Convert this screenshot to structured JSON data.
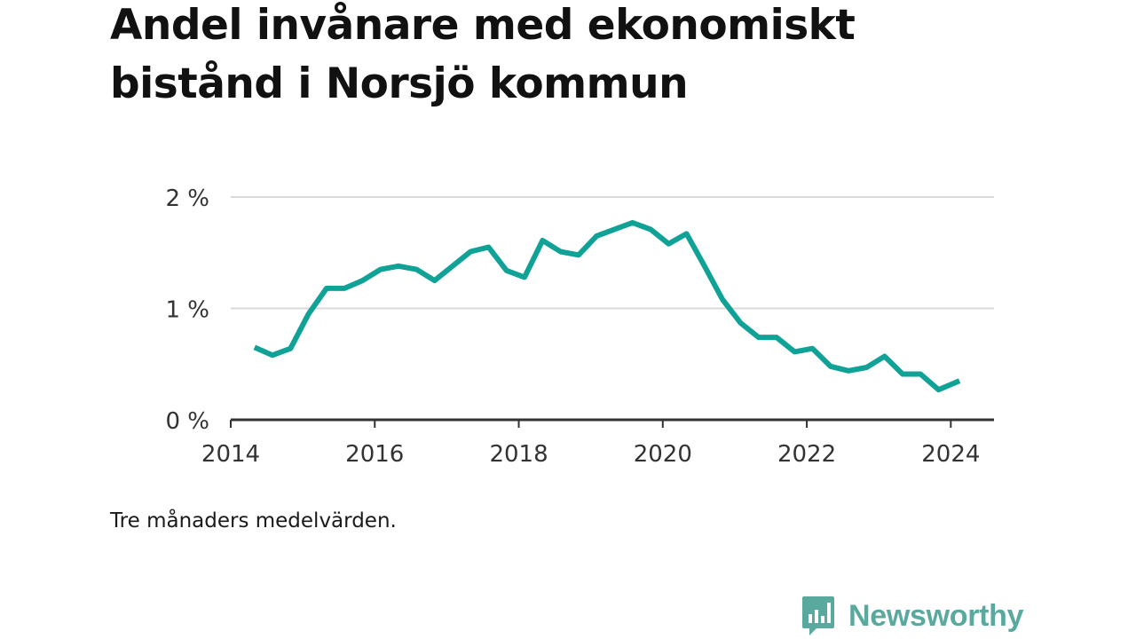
{
  "title": "Andel invånare med ekonomiskt bistånd i Norsjö kommun",
  "caption": "Tre månaders medelvärden.",
  "brand": {
    "name": "Newsworthy",
    "color": "#5aa99f",
    "icon": "newsworthy-chart-bubble-icon"
  },
  "chart_data": {
    "type": "line",
    "title": "Andel invånare med ekonomiskt bistånd i Norsjö kommun",
    "xlabel": "",
    "ylabel": "",
    "x_ticks": [
      2014,
      2016,
      2018,
      2020,
      2022,
      2024
    ],
    "y_ticks": [
      0,
      1,
      2
    ],
    "y_tick_labels": [
      "0 %",
      "1 %",
      "2 %"
    ],
    "xlim": [
      2014,
      2024.6
    ],
    "ylim": [
      0,
      2
    ],
    "grid": true,
    "line_color": "#11a297",
    "series": [
      {
        "x": [
          2014.33,
          2014.58,
          2014.83,
          2015.08,
          2015.33,
          2015.58,
          2015.83,
          2016.08,
          2016.33,
          2016.58,
          2016.83,
          2017.08,
          2017.33,
          2017.58,
          2017.83,
          2018.08,
          2018.33,
          2018.58,
          2018.83,
          2019.08,
          2019.33,
          2019.58,
          2019.83,
          2020.08,
          2020.33,
          2020.58,
          2020.83,
          2021.08,
          2021.33,
          2021.58,
          2021.83,
          2022.08,
          2022.33,
          2022.58,
          2022.83,
          2023.08,
          2023.33,
          2023.58,
          2023.83,
          2024.12
        ],
        "values": [
          0.65,
          0.58,
          0.64,
          0.95,
          1.18,
          1.18,
          1.25,
          1.35,
          1.38,
          1.35,
          1.25,
          1.38,
          1.51,
          1.55,
          1.34,
          1.28,
          1.61,
          1.51,
          1.48,
          1.65,
          1.71,
          1.77,
          1.71,
          1.58,
          1.67,
          1.38,
          1.08,
          0.87,
          0.74,
          0.74,
          0.61,
          0.64,
          0.48,
          0.44,
          0.47,
          0.57,
          0.41,
          0.41,
          0.27,
          0.35
        ]
      }
    ]
  }
}
